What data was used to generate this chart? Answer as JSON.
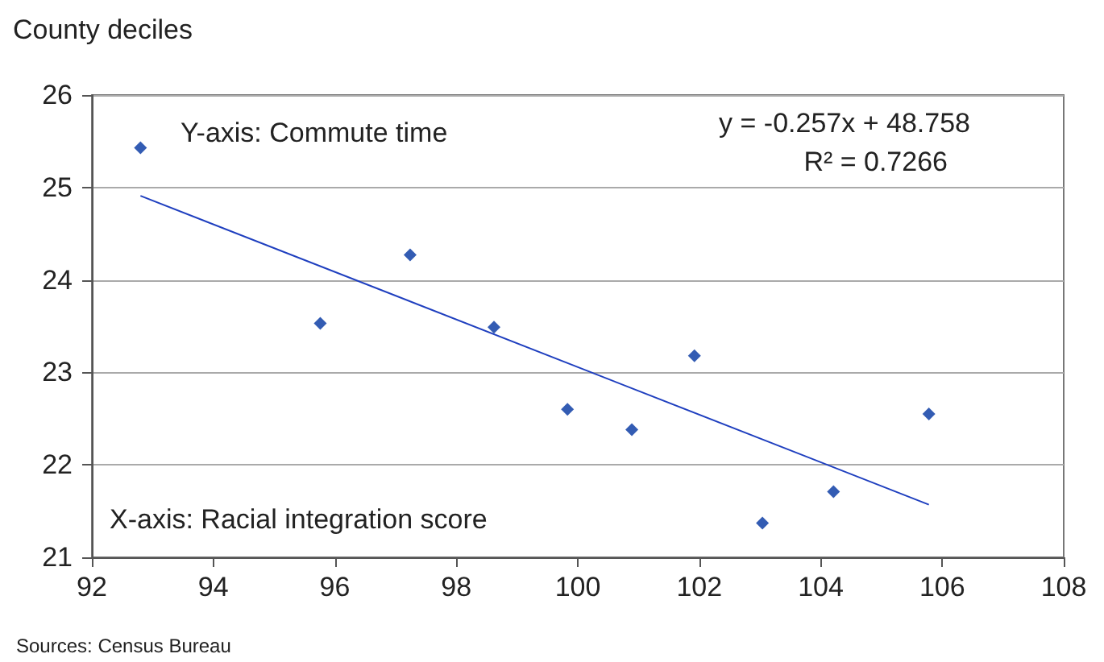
{
  "chart_data": {
    "type": "scatter",
    "ylabel": "County deciles",
    "x": [
      92.8,
      95.76,
      97.24,
      98.62,
      99.83,
      100.89,
      101.92,
      103.04,
      104.21,
      105.78
    ],
    "series": [
      {
        "color": "#0033a0",
        "values": [
          25.43,
          23.53,
          24.27,
          23.49,
          22.6,
          22.38,
          23.18,
          21.37,
          21.71,
          22.55
        ],
        "marker": "diamond"
      },
      {
        "type": "line",
        "color": "#1f3fbf",
        "x": [
          92.8,
          105.78
        ],
        "values": [
          24.91,
          21.57
        ],
        "marker": "none"
      }
    ],
    "xlim": [
      92,
      108
    ],
    "xticks": [
      92,
      94,
      96,
      98,
      100,
      102,
      104,
      106,
      108
    ],
    "ylim": [
      21,
      26
    ],
    "yticks": [
      21,
      22,
      23,
      24,
      25,
      26
    ],
    "grid": "y",
    "annotations": [
      "Y-axis: Commute time",
      "y = -0.257x + 48.758",
      "R² = 0.7266",
      "X-axis: Racial integration score",
      "Sources: Census Bureau"
    ]
  }
}
